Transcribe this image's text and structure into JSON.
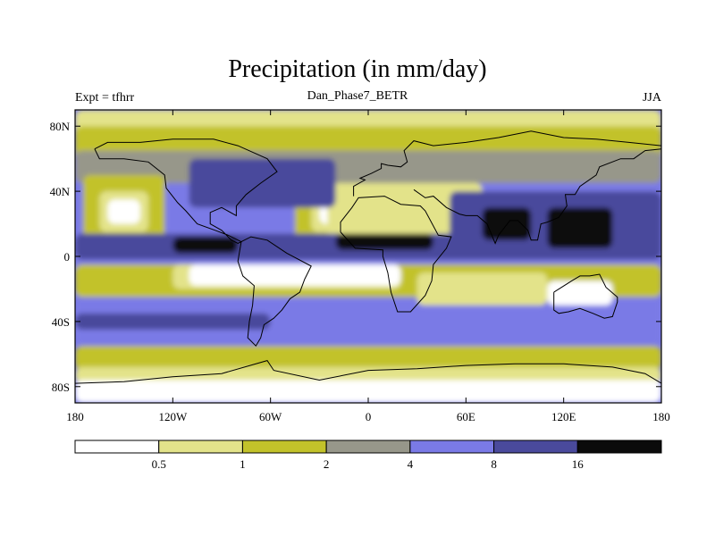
{
  "chart_data": {
    "type": "heatmap",
    "title": "Precipitation (in mm/day)",
    "subtitle": "Dan_Phase7_BETR",
    "left_label": "Expt = tfhrr",
    "right_label": "JJA",
    "xlim": [
      -180,
      180
    ],
    "ylim": [
      -90,
      90
    ],
    "x_ticks": [
      {
        "value": -180,
        "label": "180"
      },
      {
        "value": -120,
        "label": "120W"
      },
      {
        "value": -60,
        "label": "60W"
      },
      {
        "value": 0,
        "label": "0"
      },
      {
        "value": 60,
        "label": "60E"
      },
      {
        "value": 120,
        "label": "120E"
      },
      {
        "value": 180,
        "label": "180"
      }
    ],
    "y_ticks": [
      {
        "value": 80,
        "label": "80N"
      },
      {
        "value": 40,
        "label": "40N"
      },
      {
        "value": 0,
        "label": "0"
      },
      {
        "value": -40,
        "label": "40S"
      },
      {
        "value": -80,
        "label": "80S"
      }
    ],
    "colorbar": {
      "levels": [
        "0.5",
        "1",
        "2",
        "4",
        "8",
        "16"
      ],
      "colors": [
        "#ffffff",
        "#e3e38a",
        "#c2c22a",
        "#97978a",
        "#7a7ae6",
        "#4a4a9c",
        "#0b0b0b"
      ]
    },
    "regions": [
      {
        "level": 4,
        "lon": [
          -180,
          180
        ],
        "lat": [
          -55,
          70
        ],
        "desc": "background mid-latitude/subtropical band"
      },
      {
        "level": 1,
        "lon": [
          -180,
          180
        ],
        "lat": [
          70,
          90
        ]
      },
      {
        "level": 2,
        "lon": [
          -180,
          180
        ],
        "lat": [
          55,
          80
        ]
      },
      {
        "level": 3,
        "lon": [
          -180,
          180
        ],
        "lat": [
          45,
          65
        ]
      },
      {
        "level": 2,
        "lon": [
          -180,
          180
        ],
        "lat": [
          -70,
          -55
        ]
      },
      {
        "level": 1,
        "lon": [
          -180,
          180
        ],
        "lat": [
          -78,
          -68
        ]
      },
      {
        "level": 0,
        "lon": [
          -180,
          180
        ],
        "lat": [
          -90,
          -76
        ]
      },
      {
        "level": 2,
        "lon": [
          -175,
          -125
        ],
        "lat": [
          10,
          50
        ]
      },
      {
        "level": 1,
        "lon": [
          -165,
          -135
        ],
        "lat": [
          15,
          40
        ]
      },
      {
        "level": 0,
        "lon": [
          -160,
          -140
        ],
        "lat": [
          20,
          35
        ]
      },
      {
        "level": 2,
        "lon": [
          -45,
          0
        ],
        "lat": [
          10,
          45
        ]
      },
      {
        "level": 1,
        "lon": [
          -35,
          -5
        ],
        "lat": [
          15,
          38
        ]
      },
      {
        "level": 0,
        "lon": [
          -30,
          -10
        ],
        "lat": [
          20,
          35
        ]
      },
      {
        "level": 0,
        "lon": [
          -20,
          60
        ],
        "lat": [
          15,
          40
        ]
      },
      {
        "level": 1,
        "lon": [
          -25,
          70
        ],
        "lat": [
          10,
          45
        ]
      },
      {
        "level": 2,
        "lon": [
          -180,
          180
        ],
        "lat": [
          -25,
          -5
        ]
      },
      {
        "level": 1,
        "lon": [
          -120,
          20
        ],
        "lat": [
          -20,
          -5
        ]
      },
      {
        "level": 0,
        "lon": [
          -110,
          20
        ],
        "lat": [
          -18,
          -5
        ]
      },
      {
        "level": 1,
        "lon": [
          30,
          110
        ],
        "lat": [
          -30,
          -10
        ]
      },
      {
        "level": 0,
        "lon": [
          110,
          150
        ],
        "lat": [
          -30,
          -15
        ]
      },
      {
        "level": 5,
        "lon": [
          -180,
          180
        ],
        "lat": [
          -2,
          14
        ]
      },
      {
        "level": 6,
        "lon": [
          -120,
          -80
        ],
        "lat": [
          2,
          12
        ]
      },
      {
        "level": 6,
        "lon": [
          -20,
          40
        ],
        "lat": [
          4,
          14
        ]
      },
      {
        "level": 5,
        "lon": [
          50,
          180
        ],
        "lat": [
          0,
          40
        ]
      },
      {
        "level": 6,
        "lon": [
          70,
          100
        ],
        "lat": [
          10,
          30
        ]
      },
      {
        "level": 6,
        "lon": [
          110,
          150
        ],
        "lat": [
          5,
          30
        ]
      },
      {
        "level": 5,
        "lon": [
          -180,
          -60
        ],
        "lat": [
          -45,
          -35
        ]
      },
      {
        "level": 5,
        "lon": [
          -110,
          -20
        ],
        "lat": [
          30,
          60
        ]
      }
    ]
  }
}
